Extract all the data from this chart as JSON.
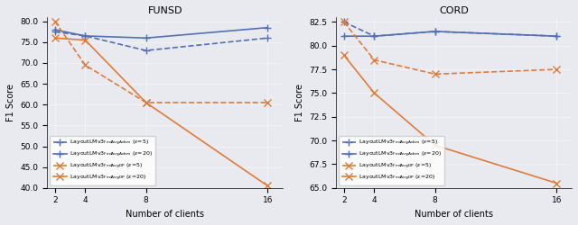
{
  "clients": [
    2,
    4,
    8,
    16
  ],
  "funsd": {
    "title": "FUNSD",
    "ylabel": "F1 Score",
    "xlabel": "Number of clients",
    "ylim": [
      40.0,
      81.0
    ],
    "yticks": [
      40.0,
      45.0,
      50.0,
      55.0,
      60.0,
      65.0,
      70.0,
      75.0,
      80.0
    ],
    "blue_dashed": [
      77.5,
      76.5,
      73.0,
      76.0
    ],
    "blue_solid": [
      78.0,
      76.5,
      76.0,
      78.5
    ],
    "orange_dashed": [
      80.0,
      69.5,
      60.5,
      60.5
    ],
    "orange_solid": [
      76.0,
      75.5,
      60.5,
      40.5
    ]
  },
  "cord": {
    "title": "CORD",
    "ylabel": "F1 Score",
    "xlabel": "Number of clients",
    "ylim": [
      65.0,
      83.0
    ],
    "yticks": [
      65.0,
      67.5,
      70.0,
      72.5,
      75.0,
      77.5,
      80.0,
      82.5
    ],
    "blue_dashed": [
      82.5,
      81.0,
      81.5,
      81.0
    ],
    "blue_solid": [
      81.0,
      81.0,
      81.5,
      81.0
    ],
    "orange_dashed": [
      82.5,
      78.5,
      77.0,
      77.5
    ],
    "orange_solid": [
      79.0,
      75.0,
      69.5,
      65.5
    ]
  },
  "legend_labels": {
    "blue_dashed": "LayoutLMv3$_{\\\\mathrm{FedAvgAdam}}$ ($\\\\epsilon$=5)",
    "blue_solid": "LayoutLMv3$_{\\\\mathrm{FedAvgAdam}}$ ($\\\\epsilon$=20)",
    "orange_dashed": "LayoutLMv3$_{\\\\mathrm{FedAvgDP}}$ ($\\\\epsilon$=5)",
    "orange_solid": "LayoutLMv3$_{\\\\mathrm{FedAvgDP}}$ ($\\\\epsilon$=20)"
  },
  "blue_color": "#5470b3",
  "orange_color": "#e07b39",
  "bg_color": "#e8eaf0"
}
